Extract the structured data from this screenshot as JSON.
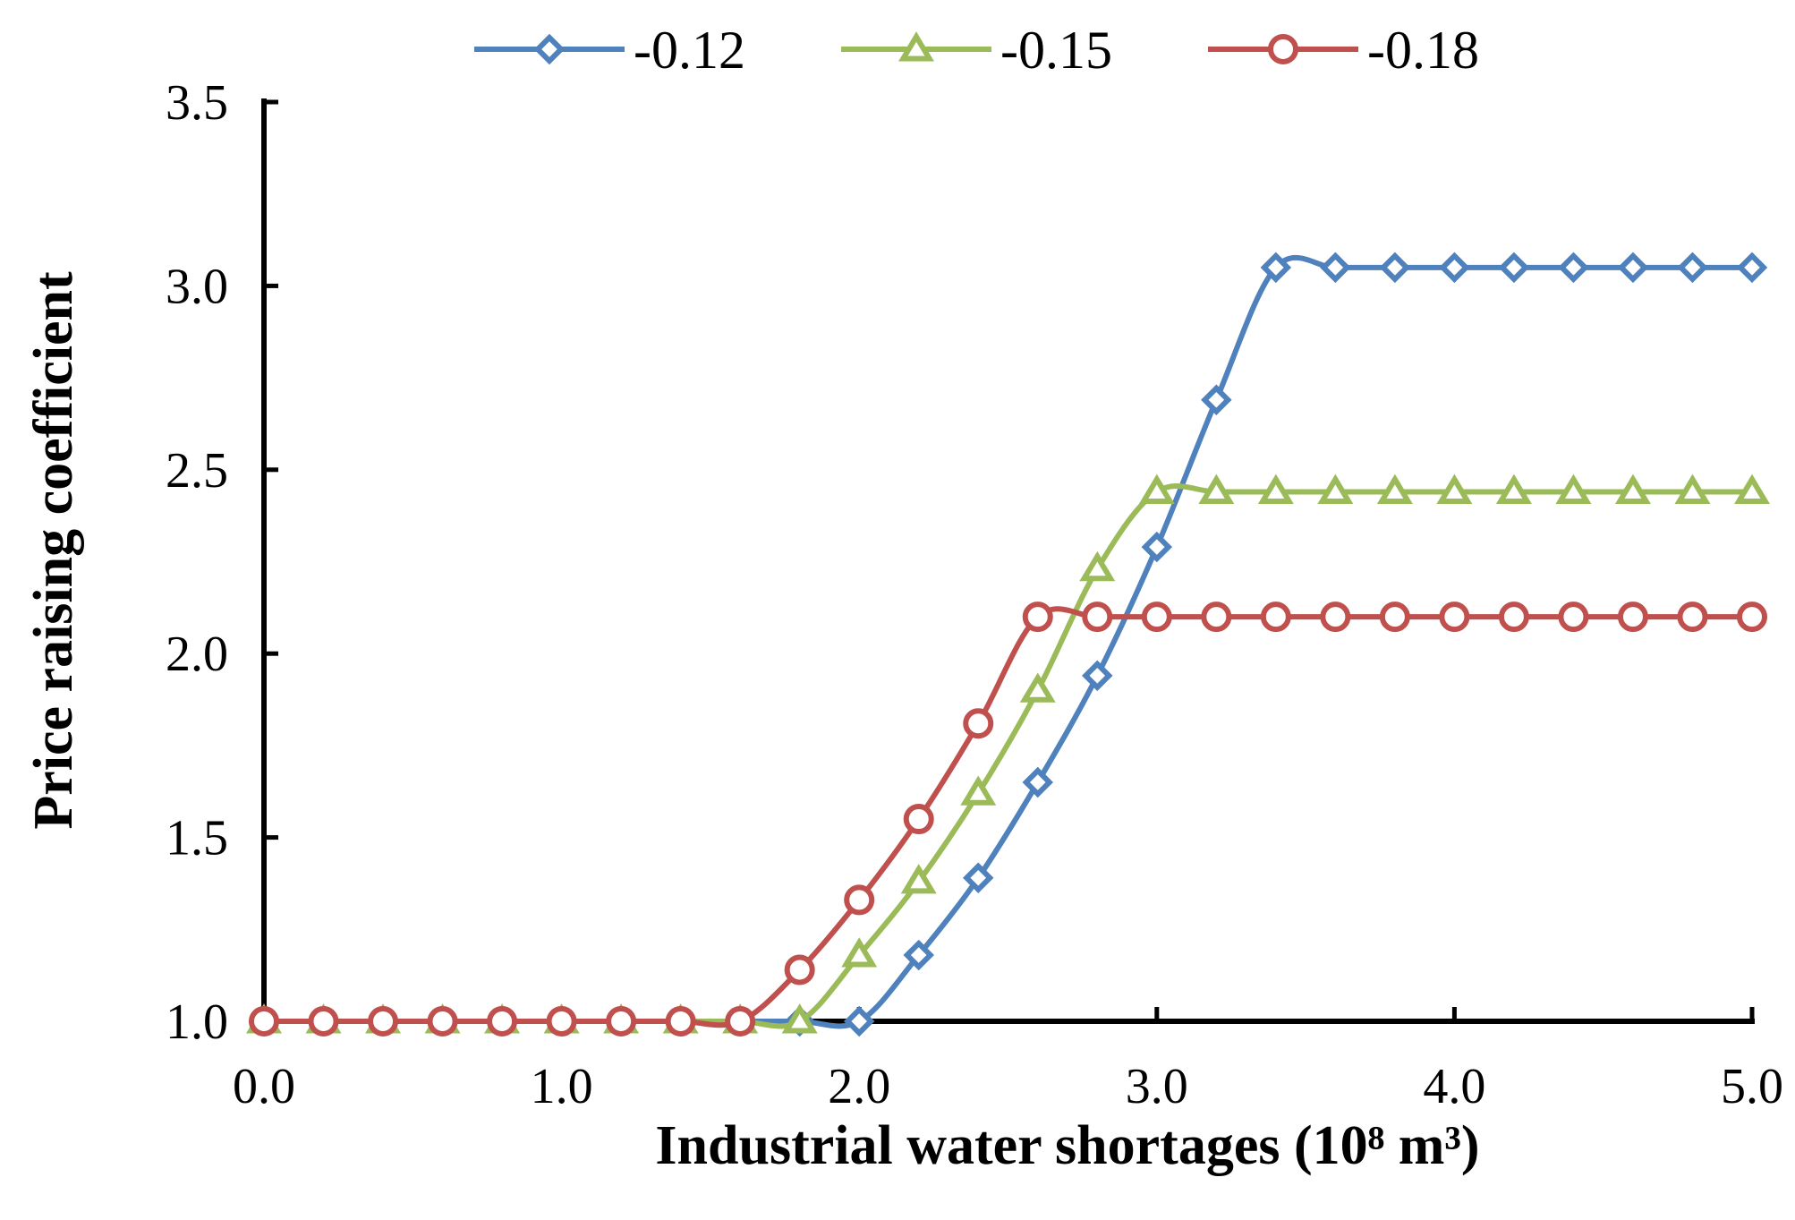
{
  "chart_data": {
    "type": "line",
    "xlabel": "Industrial water shortages  (10⁸ m³)",
    "ylabel": "Price raising coefficient",
    "xlim": [
      0,
      5
    ],
    "ylim": [
      1,
      3.5
    ],
    "x_ticks": [
      "0.0",
      "1.0",
      "2.0",
      "3.0",
      "4.0",
      "5.0"
    ],
    "y_ticks": [
      "1.0",
      "1.5",
      "2.0",
      "2.5",
      "3.0",
      "3.5"
    ],
    "grid": false,
    "smooth": true,
    "legend_position": "top",
    "x": [
      0.0,
      0.2,
      0.4,
      0.6,
      0.8,
      1.0,
      1.2,
      1.4,
      1.6,
      1.8,
      2.0,
      2.2,
      2.4,
      2.6,
      2.8,
      3.0,
      3.2,
      3.4,
      3.6,
      3.8,
      4.0,
      4.2,
      4.4,
      4.6,
      4.8,
      5.0
    ],
    "series": [
      {
        "name": "-0.12",
        "color": "#4F81BD",
        "marker": "diamond",
        "values": [
          1.0,
          1.0,
          1.0,
          1.0,
          1.0,
          1.0,
          1.0,
          1.0,
          1.0,
          1.0,
          1.0,
          1.18,
          1.39,
          1.65,
          1.94,
          2.29,
          2.69,
          3.05,
          3.05,
          3.05,
          3.05,
          3.05,
          3.05,
          3.05,
          3.05,
          3.05
        ]
      },
      {
        "name": "-0.15",
        "color": "#9BBB59",
        "marker": "triangle",
        "values": [
          1.0,
          1.0,
          1.0,
          1.0,
          1.0,
          1.0,
          1.0,
          1.0,
          1.0,
          1.0,
          1.18,
          1.38,
          1.62,
          1.9,
          2.23,
          2.44,
          2.44,
          2.44,
          2.44,
          2.44,
          2.44,
          2.44,
          2.44,
          2.44,
          2.44,
          2.44
        ]
      },
      {
        "name": "-0.18",
        "color": "#C0504D",
        "marker": "circle",
        "values": [
          1.0,
          1.0,
          1.0,
          1.0,
          1.0,
          1.0,
          1.0,
          1.0,
          1.0,
          1.14,
          1.33,
          1.55,
          1.81,
          2.1,
          2.1,
          2.1,
          2.1,
          2.1,
          2.1,
          2.1,
          2.1,
          2.1,
          2.1,
          2.1,
          2.1,
          2.1
        ]
      }
    ]
  }
}
